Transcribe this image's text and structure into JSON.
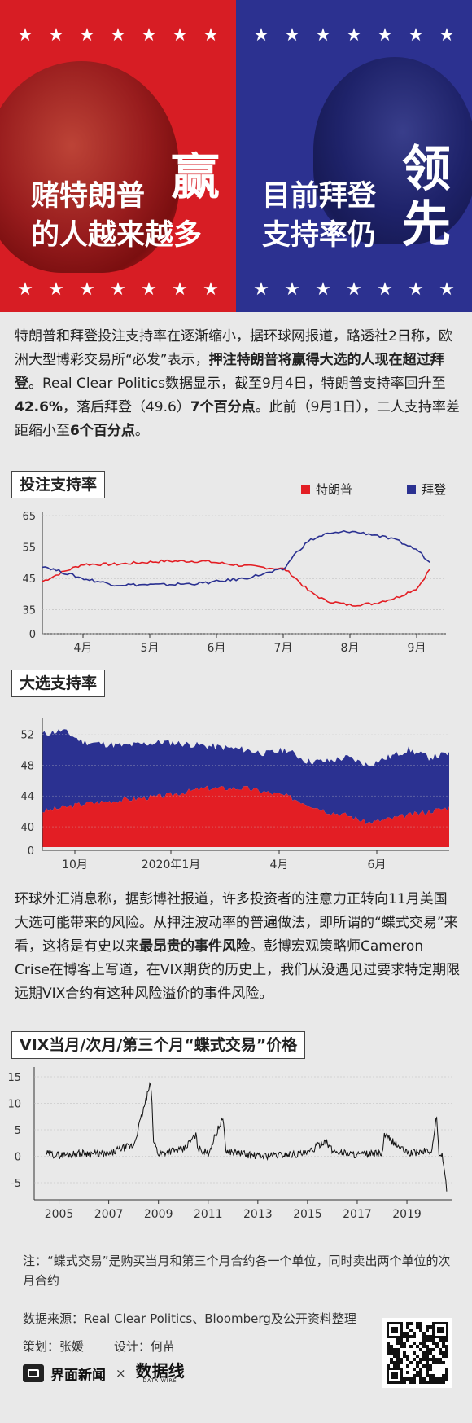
{
  "hero": {
    "left_line1": "赌特朗普",
    "left_big": "赢",
    "left_line2": "的人越来越多",
    "right_line1": "目前拜登",
    "right_line2": "支持率仍",
    "right_big1": "领",
    "right_big2": "先",
    "star": "★"
  },
  "intro": {
    "p1": "特朗普和拜登投注支持率在逐渐缩小，据环球网报道，路透社2日称，欧洲大型博彩交易所“必发”表示，",
    "b1": "押注特朗普将赢得大选的人现在超过拜登",
    "p2": "。Real Clear Politics数据显示，截至9月4日，特朗普支持率回升至",
    "b2": "42.6%",
    "p3": "，落后拜登（49.6）",
    "b3": "7个百分点",
    "p4": "。此前（9月1日），二人支持率差距缩小至",
    "b4": "6个百分点",
    "p5": "。"
  },
  "chart1": {
    "title": "投注支持率",
    "legend_trump": "特朗普",
    "legend_biden": "拜登"
  },
  "chart2": {
    "title": "大选支持率"
  },
  "para2": {
    "p1": "环球外汇消息称，据彭博社报道，许多投资者的注意力正转向11月美国大选可能带来的风险。从押注波动率的普遍做法，即所谓的“蝶式交易”来看，这将是有史以来",
    "b1": "最昂贵的事件风险",
    "p2": "。彭博宏观策略师Cameron Crise在博客上写道，在VIX期货的历史上，我们从没遇见过要求特定期限远期VIX合约有这种风险溢价的事件风险。"
  },
  "chart3": {
    "title": "VIX当月/次月/第三个月“蝶式交易”价格"
  },
  "note": "注：“蝶式交易”是购买当月和第三个月合约各一个单位，同时卖出两个单位的次月合约",
  "source": "数据来源：Real Clear Politics、Bloomberg及公开资料整理",
  "credits": {
    "planner": "策划：张媛",
    "designer": "设计：何苗"
  },
  "footer": {
    "brand1": "界面新闻",
    "cross": "×",
    "brand2": "数据线",
    "brand2_en": "DATA WIRE"
  },
  "colors": {
    "trump": "#e31e24",
    "biden": "#2b3191"
  },
  "chart_data": [
    {
      "type": "line",
      "title": "投注支持率",
      "categories": [
        "4月",
        "5月",
        "6月",
        "7月",
        "8月",
        "9月"
      ],
      "yticks": [
        0,
        35,
        45,
        55,
        65
      ],
      "ylim": [
        0,
        65
      ],
      "series": [
        {
          "name": "特朗普",
          "x": [
            0,
            5,
            10,
            18,
            30,
            40,
            50,
            60,
            62,
            66,
            70,
            76,
            82,
            88,
            93,
            96
          ],
          "values": [
            44,
            47,
            49.5,
            49.5,
            50.5,
            50.5,
            49,
            48,
            46,
            41,
            38,
            36.5,
            37,
            39,
            42,
            48
          ]
        },
        {
          "name": "拜登",
          "x": [
            0,
            5,
            10,
            18,
            30,
            40,
            50,
            60,
            62,
            66,
            70,
            76,
            82,
            88,
            93,
            96
          ],
          "values": [
            49,
            47,
            45,
            43,
            43,
            43.5,
            45,
            48,
            52,
            57,
            59,
            60,
            59,
            57,
            54,
            50
          ]
        }
      ]
    },
    {
      "type": "area",
      "title": "大选支持率",
      "categories": [
        "10月",
        "2020年1月",
        "4月",
        "6月"
      ],
      "yticks": [
        0,
        40,
        44,
        48,
        52
      ],
      "ylim": [
        0,
        52
      ],
      "series": [
        {
          "name": "特朗普",
          "x": [
            0,
            5,
            10,
            20,
            30,
            40,
            50,
            55,
            60,
            65,
            70,
            75,
            80,
            85,
            90,
            95,
            100
          ],
          "values": [
            42,
            42.5,
            43,
            43.5,
            44,
            45,
            45,
            44.5,
            44,
            43,
            42,
            41.5,
            40.5,
            41,
            41.5,
            42,
            42.5
          ]
        },
        {
          "name": "拜登",
          "x": [
            0,
            5,
            10,
            20,
            30,
            40,
            50,
            55,
            60,
            65,
            70,
            75,
            80,
            85,
            90,
            95,
            100
          ],
          "values": [
            52,
            52.5,
            51,
            50.5,
            51,
            50.5,
            50,
            49.5,
            50,
            48.5,
            48.5,
            49,
            48,
            49,
            50,
            49,
            49.5
          ]
        }
      ]
    },
    {
      "type": "line",
      "title": "VIX当月/次月/第三个月“蝶式交易”价格",
      "categories": [
        "2005",
        "2007",
        "2009",
        "2011",
        "2013",
        "2015",
        "2017",
        "2019"
      ],
      "yticks": [
        -5,
        0,
        5,
        10,
        15
      ],
      "ylim": [
        -6,
        15
      ],
      "series": [
        {
          "name": "",
          "x": [
            2004.5,
            2005,
            2006,
            2007,
            2007.5,
            2008,
            2008.7,
            2008.8,
            2009,
            2009.5,
            2010,
            2010.5,
            2010.6,
            2011,
            2011.6,
            2011.7,
            2012,
            2013,
            2014,
            2015,
            2015.7,
            2016,
            2017,
            2018,
            2018.1,
            2019,
            2019.6,
            2019.8,
            2020,
            2020.2,
            2020.3,
            2020.4,
            2020.5,
            2020.6
          ],
          "values": [
            0.5,
            0.2,
            0.6,
            0.3,
            1.5,
            2,
            14,
            3,
            0.5,
            1,
            1.2,
            4,
            1.5,
            0.5,
            7.5,
            1,
            0.8,
            0,
            0.3,
            0.5,
            3,
            1,
            0.3,
            0.5,
            4,
            0.6,
            0.8,
            1.2,
            0.6,
            8,
            -1,
            1,
            -2,
            -6.5
          ]
        }
      ]
    }
  ]
}
